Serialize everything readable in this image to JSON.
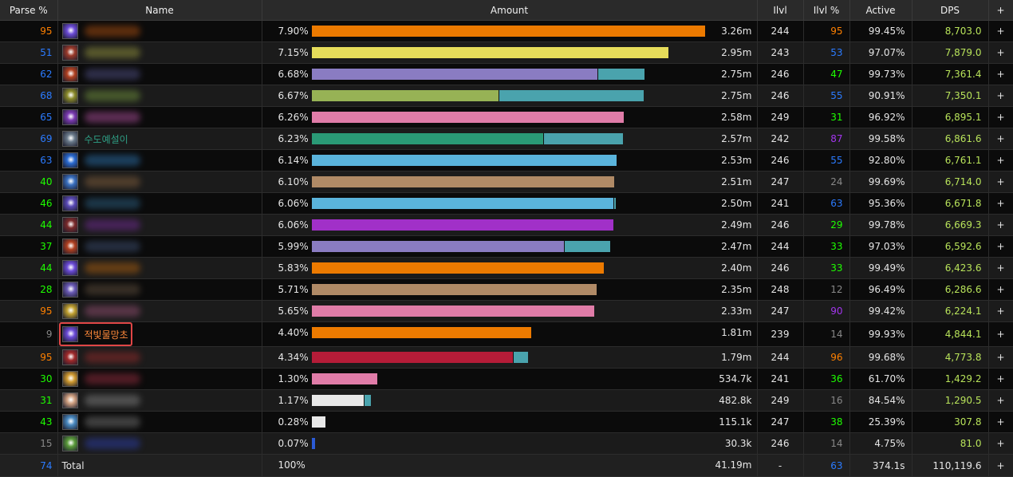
{
  "headers": {
    "parse": "Parse %",
    "name": "Name",
    "amount": "Amount",
    "ilvl": "Ilvl",
    "ilvl_pct": "Ilvl %",
    "active": "Active",
    "dps": "DPS",
    "plus": "+"
  },
  "colors": {
    "parse_orange": "#ff8000",
    "parse_blue": "#2b7bff",
    "parse_green": "#1eff00",
    "parse_purple": "#a335ee",
    "parse_gray": "#888888",
    "dps_text": "#b8e35a",
    "highlight_border": "#e04646",
    "secondary_bar": "#4aa3ad"
  },
  "rows": [
    {
      "parse": "95",
      "parse_color": "#ff8000",
      "name": "",
      "icon": "spell-icon",
      "icon_color": "#6b4bd6",
      "blur_color": "#a04a10",
      "pct": "7.90%",
      "bar_frac": 0.9998,
      "bar2_frac": 0,
      "bar_color": "#ec7a00",
      "amount": "3.26m",
      "ilvl": "244",
      "ilvl_pct": "95",
      "ilvl_color": "#ff8000",
      "active": "99.45%",
      "dps": "8,703.0",
      "plus": "+"
    },
    {
      "parse": "51",
      "parse_color": "#2b7bff",
      "name": "",
      "icon": "warrior-icon",
      "icon_color": "#9a3a2a",
      "blur_color": "#8a8a3a",
      "pct": "7.15%",
      "bar_frac": 0.905,
      "bar2_frac": 0,
      "bar_color": "#e6dc5a",
      "amount": "2.95m",
      "ilvl": "243",
      "ilvl_pct": "53",
      "ilvl_color": "#2b7bff",
      "active": "97.07%",
      "dps": "7,879.0",
      "plus": "+"
    },
    {
      "parse": "62",
      "parse_color": "#2b7bff",
      "name": "",
      "icon": "fire-icon",
      "icon_color": "#b04020",
      "blur_color": "#4a4a7a",
      "pct": "6.68%",
      "bar_frac": 0.7247,
      "bar2_frac": 0.1187,
      "bar_color": "#8a7cc2",
      "amount": "2.75m",
      "ilvl": "246",
      "ilvl_pct": "47",
      "ilvl_color": "#1eff00",
      "active": "99.73%",
      "dps": "7,361.4",
      "plus": "+"
    },
    {
      "parse": "68",
      "parse_color": "#2b7bff",
      "name": "",
      "icon": "hunter-icon",
      "icon_color": "#8a8a2a",
      "blur_color": "#6a8a3a",
      "pct": "6.67%",
      "bar_frac": 0.4757,
      "bar2_frac": 0.3654,
      "bar_color": "#97b255",
      "amount": "2.75m",
      "ilvl": "246",
      "ilvl_pct": "55",
      "ilvl_color": "#2b7bff",
      "active": "90.91%",
      "dps": "7,350.1",
      "plus": "+"
    },
    {
      "parse": "65",
      "parse_color": "#2b7bff",
      "name": "",
      "icon": "shadow-icon",
      "icon_color": "#7a3ab0",
      "blur_color": "#a04a90",
      "pct": "6.26%",
      "bar_frac": 0.7915,
      "bar2_frac": 0,
      "bar_color": "#e07ca8",
      "amount": "2.58m",
      "ilvl": "249",
      "ilvl_pct": "31",
      "ilvl_color": "#1eff00",
      "active": "96.92%",
      "dps": "6,895.1",
      "plus": "+"
    },
    {
      "parse": "69",
      "parse_color": "#2b7bff",
      "name": "수도예설이",
      "name_color": "#2e9e84",
      "icon": "wolf-icon",
      "icon_color": "#6a7a8a",
      "blur_color": "",
      "pct": "6.23%",
      "bar_frac": 0.5874,
      "bar2_frac": 0.2004,
      "bar_color": "#2a9a76",
      "amount": "2.57m",
      "ilvl": "242",
      "ilvl_pct": "87",
      "ilvl_color": "#a335ee",
      "active": "99.58%",
      "dps": "6,861.6",
      "plus": "+"
    },
    {
      "parse": "63",
      "parse_color": "#2b7bff",
      "name": "",
      "icon": "frost-icon",
      "icon_color": "#2a6ad0",
      "blur_color": "#2a6aa0",
      "pct": "6.14%",
      "bar_frac": 0.7753,
      "bar2_frac": 0,
      "bar_color": "#5ab4dc",
      "amount": "2.53m",
      "ilvl": "246",
      "ilvl_pct": "55",
      "ilvl_color": "#2b7bff",
      "active": "92.80%",
      "dps": "6,761.1",
      "plus": "+"
    },
    {
      "parse": "40",
      "parse_color": "#1eff00",
      "name": "",
      "icon": "frost-icon",
      "icon_color": "#3a70c0",
      "blur_color": "#7a5a3a",
      "pct": "6.10%",
      "bar_frac": 0.7692,
      "bar2_frac": 0,
      "bar_color": "#b08a66",
      "amount": "2.51m",
      "ilvl": "247",
      "ilvl_pct": "24",
      "ilvl_color": "#888888",
      "active": "99.69%",
      "dps": "6,714.0",
      "plus": "+"
    },
    {
      "parse": "46",
      "parse_color": "#1eff00",
      "name": "",
      "icon": "spell-icon",
      "icon_color": "#5a4ab6",
      "blur_color": "#2a5a7a",
      "pct": "6.06%",
      "bar_frac": 0.7672,
      "bar2_frac": 0.004,
      "bar_color": "#5ab4dc",
      "amount": "2.50m",
      "ilvl": "241",
      "ilvl_pct": "63",
      "ilvl_color": "#2b7bff",
      "active": "95.36%",
      "dps": "6,671.8",
      "plus": "+"
    },
    {
      "parse": "44",
      "parse_color": "#1eff00",
      "name": "",
      "icon": "demon-icon",
      "icon_color": "#7a2a2a",
      "blur_color": "#6a2a8a",
      "pct": "6.06%",
      "bar_frac": 0.7652,
      "bar2_frac": 0,
      "bar_color": "#a130c8",
      "amount": "2.49m",
      "ilvl": "246",
      "ilvl_pct": "29",
      "ilvl_color": "#1eff00",
      "active": "99.78%",
      "dps": "6,669.3",
      "plus": "+"
    },
    {
      "parse": "37",
      "parse_color": "#1eff00",
      "name": "",
      "icon": "fire-icon",
      "icon_color": "#b04020",
      "blur_color": "#3a4a6a",
      "pct": "5.99%",
      "bar_frac": 0.6417,
      "bar2_frac": 0.1134,
      "bar_color": "#8a7cc2",
      "amount": "2.47m",
      "ilvl": "244",
      "ilvl_pct": "33",
      "ilvl_color": "#1eff00",
      "active": "97.03%",
      "dps": "6,592.6",
      "plus": "+"
    },
    {
      "parse": "44",
      "parse_color": "#1eff00",
      "name": "",
      "icon": "spell-icon",
      "icon_color": "#6b4bd6",
      "blur_color": "#a05a10",
      "pct": "5.83%",
      "bar_frac": 0.7409,
      "bar2_frac": 0,
      "bar_color": "#ec7a00",
      "amount": "2.40m",
      "ilvl": "246",
      "ilvl_pct": "33",
      "ilvl_color": "#1eff00",
      "active": "99.49%",
      "dps": "6,423.6",
      "plus": "+"
    },
    {
      "parse": "28",
      "parse_color": "#1eff00",
      "name": "",
      "icon": "spell-icon",
      "icon_color": "#6b5bb6",
      "blur_color": "#5a4a3a",
      "pct": "5.71%",
      "bar_frac": 0.7227,
      "bar2_frac": 0,
      "bar_color": "#b08a66",
      "amount": "2.35m",
      "ilvl": "248",
      "ilvl_pct": "12",
      "ilvl_color": "#888888",
      "active": "96.49%",
      "dps": "6,286.6",
      "plus": "+"
    },
    {
      "parse": "95",
      "parse_color": "#ff8000",
      "name": "",
      "icon": "paladin-icon",
      "icon_color": "#c0a030",
      "blur_color": "#8a4a6a",
      "pct": "5.65%",
      "bar_frac": 0.7166,
      "bar2_frac": 0,
      "bar_color": "#e07ca8",
      "amount": "2.33m",
      "ilvl": "247",
      "ilvl_pct": "90",
      "ilvl_color": "#a335ee",
      "active": "99.42%",
      "dps": "6,224.1",
      "plus": "+"
    },
    {
      "parse": "9",
      "parse_color": "#888888",
      "name": "적빛물망초",
      "name_color": "#ff8a3a",
      "highlight": true,
      "icon": "spell-icon",
      "icon_color": "#6b4bd6",
      "blur_color": "",
      "pct": "4.40%",
      "bar_frac": 0.5567,
      "bar2_frac": 0,
      "bar_color": "#ec7a00",
      "amount": "1.81m",
      "ilvl": "239",
      "ilvl_pct": "14",
      "ilvl_color": "#888888",
      "active": "99.93%",
      "dps": "4,844.1",
      "plus": "+"
    },
    {
      "parse": "95",
      "parse_color": "#ff8000",
      "name": "",
      "icon": "blood-icon",
      "icon_color": "#a02a2a",
      "blur_color": "#8a2a2a",
      "pct": "4.34%",
      "bar_frac": 0.5121,
      "bar2_frac": 0.0364,
      "bar_color": "#b51c38",
      "amount": "1.79m",
      "ilvl": "244",
      "ilvl_pct": "96",
      "ilvl_color": "#ff8000",
      "active": "99.68%",
      "dps": "4,773.8",
      "plus": "+"
    },
    {
      "parse": "30",
      "parse_color": "#1eff00",
      "name": "",
      "icon": "holy-icon",
      "icon_color": "#d09a30",
      "blur_color": "#8a2a3a",
      "pct": "1.30%",
      "bar_frac": 0.166,
      "bar2_frac": 0,
      "bar_color": "#e07ca8",
      "amount": "534.7k",
      "ilvl": "241",
      "ilvl_pct": "36",
      "ilvl_color": "#1eff00",
      "active": "61.70%",
      "dps": "1,429.2",
      "plus": "+"
    },
    {
      "parse": "31",
      "parse_color": "#1eff00",
      "name": "",
      "icon": "priest-icon",
      "icon_color": "#d0a080",
      "blur_color": "#7a7a7a",
      "pct": "1.17%",
      "bar_frac": 0.1316,
      "bar2_frac": 0.0162,
      "bar_color": "#e8e8e8",
      "amount": "482.8k",
      "ilvl": "249",
      "ilvl_pct": "16",
      "ilvl_color": "#888888",
      "active": "84.54%",
      "dps": "1,290.5",
      "plus": "+"
    },
    {
      "parse": "43",
      "parse_color": "#1eff00",
      "name": "",
      "icon": "water-icon",
      "icon_color": "#4a8ac0",
      "blur_color": "#6a6a6a",
      "pct": "0.28%",
      "bar_frac": 0.0364,
      "bar2_frac": 0,
      "bar_color": "#e8e8e8",
      "amount": "115.1k",
      "ilvl": "247",
      "ilvl_pct": "38",
      "ilvl_color": "#1eff00",
      "active": "25.39%",
      "dps": "307.8",
      "plus": "+"
    },
    {
      "parse": "15",
      "parse_color": "#888888",
      "name": "",
      "icon": "nature-icon",
      "icon_color": "#5a9a3a",
      "blur_color": "#2a3a9a",
      "pct": "0.07%",
      "bar_frac": 0.0101,
      "bar2_frac": 0,
      "bar_color": "#2b5bd6",
      "amount": "30.3k",
      "ilvl": "246",
      "ilvl_pct": "14",
      "ilvl_color": "#888888",
      "active": "4.75%",
      "dps": "81.0",
      "plus": "+"
    }
  ],
  "total": {
    "parse": "74",
    "parse_color": "#2b7bff",
    "label": "Total",
    "pct": "100%",
    "amount": "41.19m",
    "ilvl": "-",
    "ilvl_pct": "63",
    "ilvl_color": "#2b7bff",
    "active": "374.1s",
    "dps": "110,119.6",
    "plus": "+"
  }
}
